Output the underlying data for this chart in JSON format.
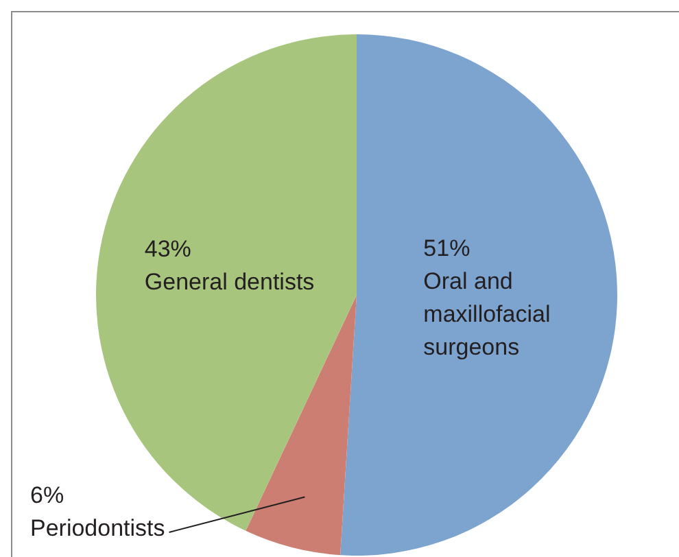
{
  "chart_data": {
    "type": "pie",
    "categories": [
      "Oral and maxillofacial surgeons",
      "Periodontists",
      "General dentists"
    ],
    "values": [
      51,
      6,
      43
    ],
    "value_labels": [
      "51%",
      "6%",
      "43%"
    ],
    "colors": [
      "#7da3cf",
      "#cc7e72",
      "#a8c57e"
    ],
    "legend": false
  }
}
